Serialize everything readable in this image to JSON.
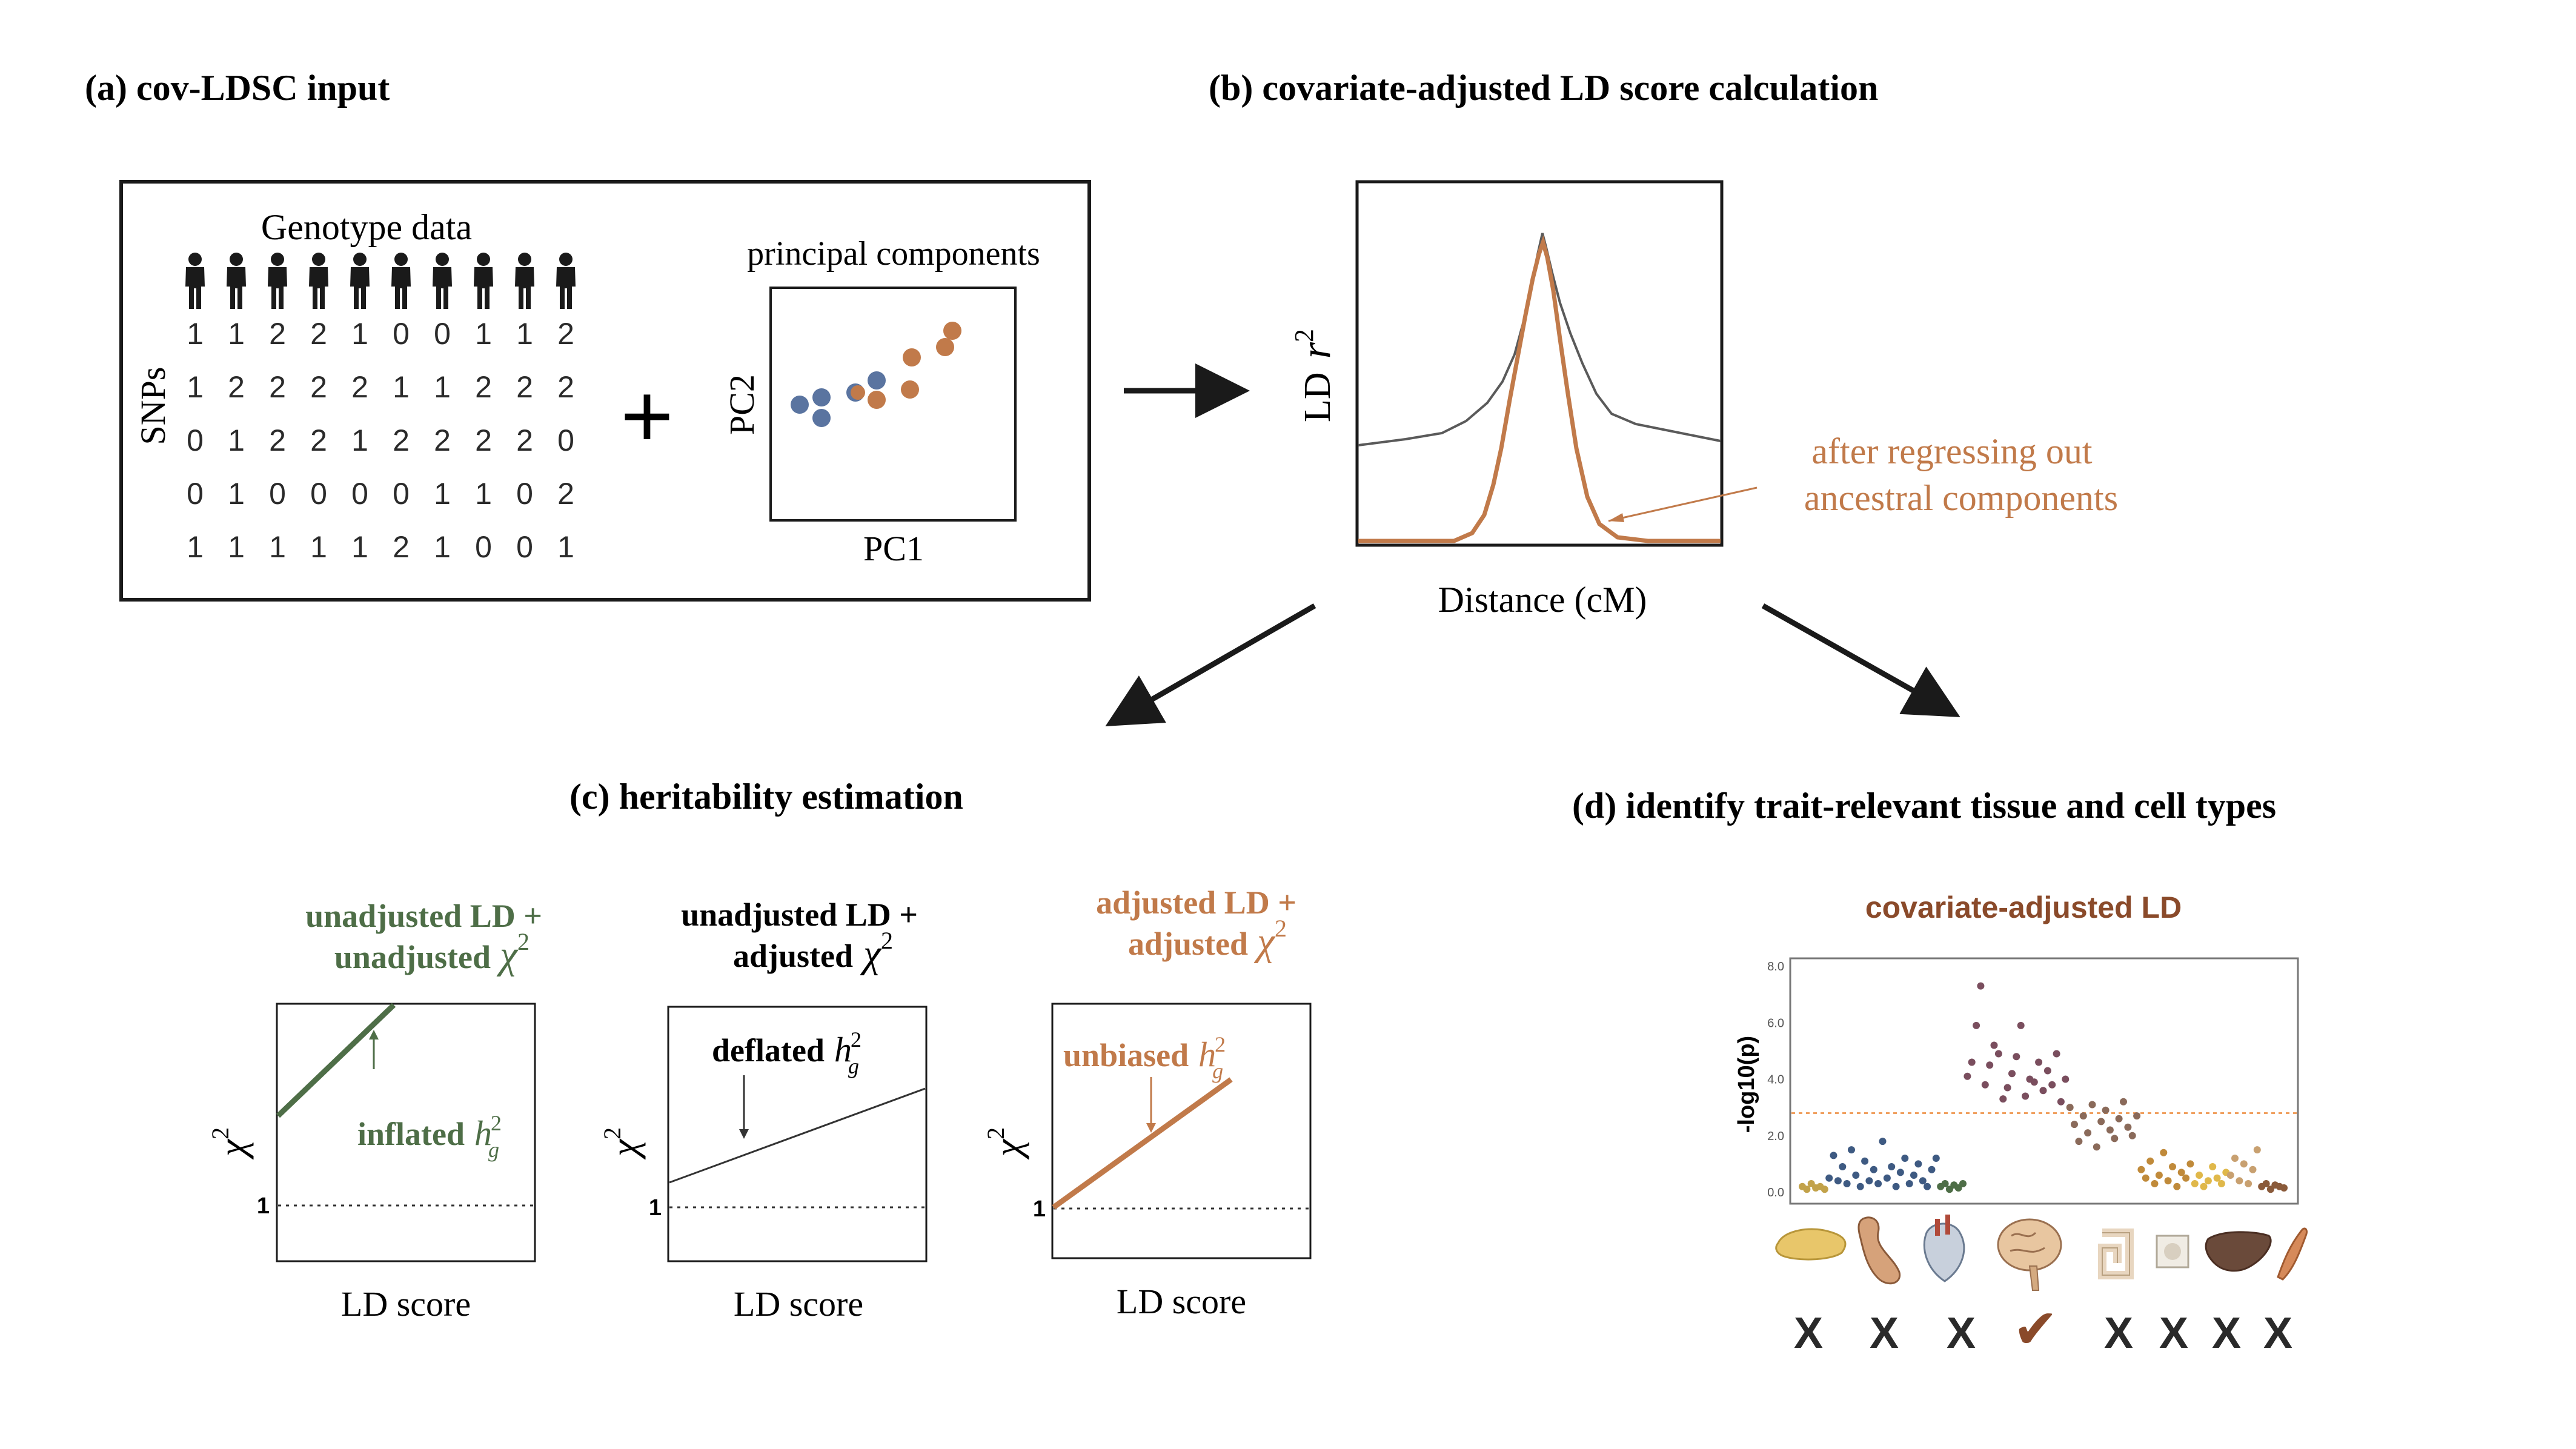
{
  "colors": {
    "green": "#4e6e47",
    "orange": "#c17a4a",
    "brown": "#8a4a2a",
    "blue": "#5a74a0",
    "black": "#1a1a1a",
    "gray": "#6a6a6a",
    "threshold": "#f0a060"
  },
  "panel_a": {
    "title": "(a) cov-LDSC input",
    "genotype_title": "Genotype data",
    "snps_label": "SNPs",
    "matrix": [
      [
        "1",
        "1",
        "2",
        "2",
        "1",
        "0",
        "0",
        "1",
        "1",
        "2"
      ],
      [
        "1",
        "2",
        "2",
        "2",
        "2",
        "1",
        "1",
        "2",
        "2",
        "2"
      ],
      [
        "0",
        "1",
        "2",
        "2",
        "1",
        "2",
        "2",
        "2",
        "2",
        "0"
      ],
      [
        "0",
        "1",
        "0",
        "0",
        "0",
        "0",
        "1",
        "1",
        "0",
        "2"
      ],
      [
        "1",
        "1",
        "1",
        "1",
        "1",
        "2",
        "1",
        "0",
        "0",
        "1"
      ]
    ],
    "plus": "+",
    "pc_title": "principal components",
    "pc_xlabel": "PC1",
    "pc_ylabel": "PC2"
  },
  "panel_b": {
    "title": "(b) covariate-adjusted LD score calculation",
    "ylabel_prefix": "LD",
    "ylabel_var": "r",
    "ylabel_sup": "2",
    "xlabel": "Distance (cM)",
    "annotation_line1": "after regressing out",
    "annotation_line2": "ancestral components"
  },
  "panel_c": {
    "title": "(c) heritability estimation",
    "xlabel": "LD score",
    "ylabel": "χ",
    "ylabel_sup": "2",
    "tick_one": "1",
    "h_sym": "h",
    "h_sup": "2",
    "h_sub": "g",
    "plots": [
      {
        "title_line1": "unadjusted LD +",
        "title_line2": "unadjusted",
        "chi": "χ",
        "chi_sup": "2",
        "annotation": "inflated"
      },
      {
        "title_line1": "unadjusted LD +",
        "title_line2": "adjusted",
        "chi": "χ",
        "chi_sup": "2",
        "annotation": "deflated"
      },
      {
        "title_line1": "adjusted LD +",
        "title_line2": "adjusted",
        "chi": "χ",
        "chi_sup": "2",
        "annotation": "unbiased"
      }
    ]
  },
  "panel_d": {
    "title": "(d) identify trait-relevant tissue and cell types",
    "chart_title": "covariate-adjusted  LD",
    "ylabel": "-log10(p)",
    "yticks": [
      "0.0",
      "2.0",
      "4.0",
      "6.0",
      "8.0"
    ],
    "marks": [
      "X",
      "X",
      "X",
      "✔",
      "X",
      "X",
      "X",
      "X"
    ],
    "tissue_icons": [
      "pancreas-icon",
      "stomach-icon",
      "heart-icon",
      "brain-icon",
      "intestine-icon",
      "bone-icon",
      "liver-icon",
      "muscle-icon"
    ]
  },
  "chart_data": {
    "type": "scatter",
    "ylabel": "-log10(p)",
    "ylim": [
      0,
      8.5
    ],
    "threshold": 2.8,
    "groups": [
      {
        "color": "#c2a24a",
        "values": [
          0.2,
          0.1,
          0.3,
          0.15,
          0.2,
          0.1
        ]
      },
      {
        "color": "#3e5a82",
        "values": [
          0.5,
          1.3,
          0.4,
          0.9,
          0.3,
          1.5,
          0.6,
          0.2,
          1.1,
          0.4,
          0.8,
          0.3,
          1.8,
          0.5,
          0.9,
          0.2,
          0.7,
          1.2,
          0.3,
          0.6,
          1.0,
          0.4,
          0.2,
          0.8,
          1.2
        ]
      },
      {
        "color": "#4e6e47",
        "values": [
          0.2,
          0.3,
          0.1,
          0.25,
          0.15,
          0.3
        ]
      },
      {
        "color": "#7a4e5e",
        "values": [
          4.1,
          4.6,
          5.9,
          7.3,
          3.8,
          4.5,
          5.2,
          4.9,
          3.3,
          3.7,
          4.2,
          4.8,
          5.9,
          3.4,
          4.0,
          3.9,
          4.6,
          3.6,
          4.3,
          3.8,
          4.9,
          3.2,
          4.0
        ]
      },
      {
        "color": "#8a6a5a",
        "values": [
          3.0,
          2.4,
          1.8,
          2.7,
          2.1,
          3.1,
          1.6,
          2.5,
          2.9,
          2.2,
          1.9,
          2.6,
          3.2,
          2.3,
          2.0,
          2.7
        ]
      },
      {
        "color": "#c08a3a",
        "values": [
          0.8,
          0.5,
          1.1,
          0.3,
          0.6,
          1.4,
          0.4,
          0.9,
          0.2,
          0.7,
          0.5,
          1.0
        ]
      },
      {
        "color": "#e0b84a",
        "values": [
          0.3,
          0.6,
          0.2,
          0.4,
          0.9,
          0.5,
          0.3,
          0.7
        ]
      },
      {
        "color": "#c8a070",
        "values": [
          0.6,
          1.2,
          0.4,
          1.0,
          0.3,
          0.8,
          1.5
        ]
      },
      {
        "color": "#8a5a3a",
        "values": [
          0.2,
          0.3,
          0.1,
          0.25,
          0.2,
          0.15
        ]
      }
    ]
  }
}
